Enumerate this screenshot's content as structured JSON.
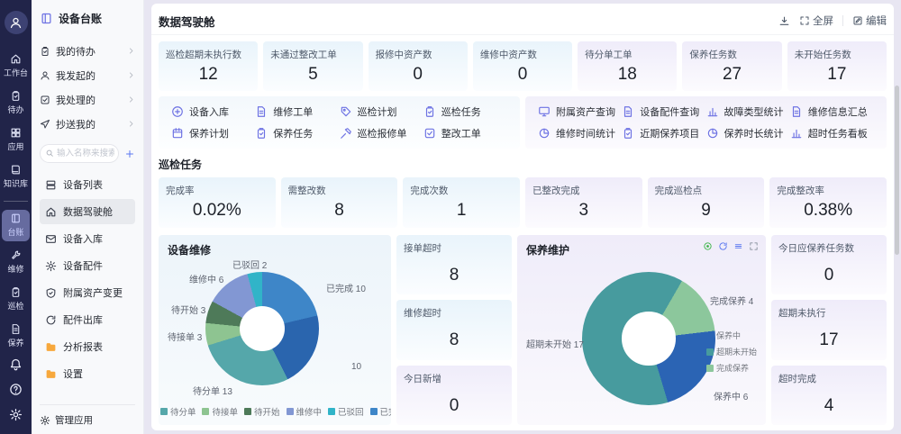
{
  "rail": {
    "items": [
      {
        "label": "工作台",
        "icon": "home",
        "active": false
      },
      {
        "label": "待办",
        "icon": "clipboard",
        "active": false
      },
      {
        "label": "应用",
        "icon": "grid",
        "active": false
      },
      {
        "label": "知识库",
        "icon": "book",
        "active": false
      },
      {
        "label": "台账",
        "icon": "ledger",
        "active": true
      },
      {
        "label": "维修",
        "icon": "wrench",
        "active": false
      },
      {
        "label": "巡检",
        "icon": "clipboard",
        "active": false
      },
      {
        "label": "保养",
        "icon": "doc",
        "active": false
      }
    ]
  },
  "sidebar": {
    "title": "设备台账",
    "shortcuts": [
      {
        "label": "我的待办",
        "icon": "clipboard"
      },
      {
        "label": "我发起的",
        "icon": "person"
      },
      {
        "label": "我处理的",
        "icon": "check-square"
      },
      {
        "label": "抄送我的",
        "icon": "send"
      }
    ],
    "search_placeholder": "输入名称来搜索",
    "menu": [
      {
        "label": "设备列表",
        "icon": "server",
        "active": false,
        "folder": false
      },
      {
        "label": "数据驾驶舱",
        "icon": "home",
        "active": true,
        "folder": false
      },
      {
        "label": "设备入库",
        "icon": "mail",
        "active": false,
        "folder": false
      },
      {
        "label": "设备配件",
        "icon": "gear",
        "active": false,
        "folder": false
      },
      {
        "label": "附属资产变更",
        "icon": "shield",
        "active": false,
        "folder": false
      },
      {
        "label": "配件出库",
        "icon": "refresh",
        "active": false,
        "folder": false
      },
      {
        "label": "分析报表",
        "icon": "folder",
        "active": false,
        "folder": true
      },
      {
        "label": "设置",
        "icon": "folder",
        "active": false,
        "folder": true
      }
    ],
    "footer": "管理应用"
  },
  "header": {
    "title": "数据驾驶舱",
    "fullscreen": "全屏",
    "edit": "编辑"
  },
  "top_stats": [
    {
      "label": "巡检超期未执行数",
      "value": "12",
      "tint": "blue"
    },
    {
      "label": "未通过整改工单",
      "value": "5",
      "tint": "blue"
    },
    {
      "label": "报修中资产数",
      "value": "0",
      "tint": "blue"
    },
    {
      "label": "维修中资产数",
      "value": "0",
      "tint": "blue"
    },
    {
      "label": "待分单工单",
      "value": "18",
      "tint": "purple"
    },
    {
      "label": "保养任务数",
      "value": "27",
      "tint": "purple"
    },
    {
      "label": "未开始任务数",
      "value": "17",
      "tint": "purple"
    }
  ],
  "quick_actions": {
    "left": [
      {
        "label": "设备入库",
        "icon": "circle-plus"
      },
      {
        "label": "维修工单",
        "icon": "doc"
      },
      {
        "label": "巡检计划",
        "icon": "tag"
      },
      {
        "label": "巡检任务",
        "icon": "clipboard"
      },
      {
        "label": "保养计划",
        "icon": "calendar"
      },
      {
        "label": "保养任务",
        "icon": "clipboard"
      },
      {
        "label": "巡检报修单",
        "icon": "hammer"
      },
      {
        "label": "整改工单",
        "icon": "check-square"
      }
    ],
    "right": [
      {
        "label": "附属资产查询",
        "icon": "monitor"
      },
      {
        "label": "设备配件查询",
        "icon": "doc"
      },
      {
        "label": "故障类型统计",
        "icon": "chart-bar"
      },
      {
        "label": "维修信息汇总",
        "icon": "doc"
      },
      {
        "label": "维修时间统计",
        "icon": "pie"
      },
      {
        "label": "近期保养项目",
        "icon": "clipboard"
      },
      {
        "label": "保养时长统计",
        "icon": "pie"
      },
      {
        "label": "超时任务看板",
        "icon": "chart-bar"
      }
    ]
  },
  "inspection": {
    "title": "巡检任务",
    "stats": [
      {
        "label": "完成率",
        "value": "0.02%",
        "tint": "blue"
      },
      {
        "label": "需整改数",
        "value": "8",
        "tint": "blue"
      },
      {
        "label": "完成次数",
        "value": "1",
        "tint": "blue"
      },
      {
        "label": "已整改完成",
        "value": "3",
        "tint": "purple"
      },
      {
        "label": "完成巡检点",
        "value": "9",
        "tint": "purple"
      },
      {
        "label": "完成整改率",
        "value": "0.38%",
        "tint": "purple"
      }
    ]
  },
  "repair_card": {
    "title": "设备维修"
  },
  "middle_stats": [
    {
      "label": "接单超时",
      "value": "8",
      "tint": "blue"
    },
    {
      "label": "维修超时",
      "value": "8",
      "tint": "blue"
    },
    {
      "label": "今日新增",
      "value": "0",
      "tint": "purple"
    }
  ],
  "maintenance_card": {
    "title": "保养维护"
  },
  "right_stats": [
    {
      "label": "今日应保养任务数",
      "value": "0",
      "tint": "purple"
    },
    {
      "label": "超期未执行",
      "value": "17",
      "tint": "purple"
    },
    {
      "label": "超时完成",
      "value": "4",
      "tint": "purple"
    }
  ],
  "chart_data": [
    {
      "type": "pie",
      "title": "设备维修",
      "donut": true,
      "start_angle": 0,
      "legend_position": "bottom",
      "slices": [
        {
          "name": "已完成",
          "value": 10,
          "color": "#3e86c8"
        },
        {
          "name": "",
          "value": 10,
          "color": "#2a65ae"
        },
        {
          "name": "待分单",
          "value": 13,
          "color": "#55a7aa"
        },
        {
          "name": "待接单",
          "value": 3,
          "color": "#8ec491"
        },
        {
          "name": "待开始",
          "value": 3,
          "color": "#4e7a59"
        },
        {
          "name": "维修中",
          "value": 6,
          "color": "#8297d3"
        },
        {
          "name": "已驳回",
          "value": 2,
          "color": "#31b4c8"
        }
      ],
      "legend": [
        {
          "label": "",
          "color": "#2a65ae"
        },
        {
          "label": "待分单",
          "color": "#55a7aa"
        },
        {
          "label": "待接单",
          "color": "#8ec491"
        },
        {
          "label": "待开始",
          "color": "#4e7a59"
        },
        {
          "label": "维修中",
          "color": "#8297d3"
        },
        {
          "label": "已驳回",
          "color": "#31b4c8"
        },
        {
          "label": "已完成",
          "color": "#3e86c8"
        }
      ]
    },
    {
      "type": "pie",
      "title": "保养维护",
      "donut": true,
      "start_angle": 30,
      "legend_position": "right",
      "slices": [
        {
          "name": "完成保养",
          "value": 4,
          "color": "#8cc79c"
        },
        {
          "name": "保养中",
          "value": 6,
          "color": "#2b64b4"
        },
        {
          "name": "超期未开始",
          "value": 17,
          "color": "#479b9e"
        }
      ],
      "legend": [
        {
          "label": "保养中",
          "color": "#2b64b4"
        },
        {
          "label": "超期未开始",
          "color": "#479b9e"
        },
        {
          "label": "完成保养",
          "color": "#8cc79c"
        }
      ]
    }
  ]
}
